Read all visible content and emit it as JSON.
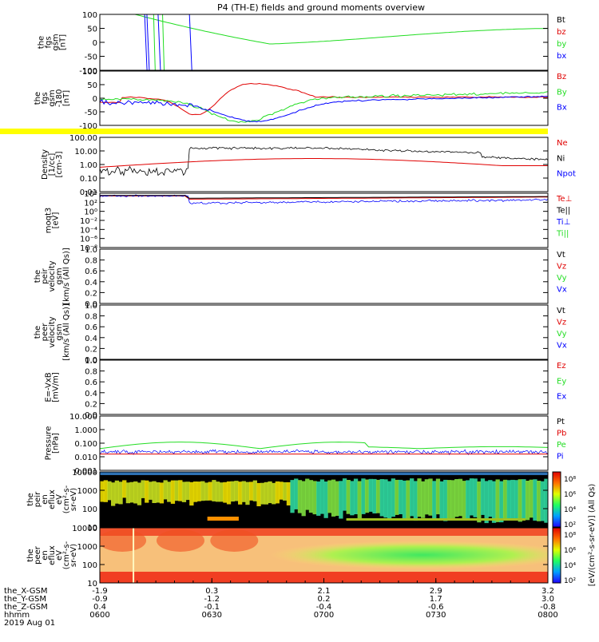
{
  "title": "P4 (TH-E) fields and ground moments overview",
  "colors": {
    "black": "#000000",
    "red": "#e00000",
    "green": "#22dd22",
    "blue": "#0000ff",
    "yellow": "#ffff00"
  },
  "chart_data": [
    {
      "id": "fgs",
      "type": "line",
      "ylabel": [
        "the",
        "fgs",
        "gsm",
        "[nT]"
      ],
      "ylim": [
        -100,
        100
      ],
      "yticks": [
        "100",
        "50",
        "0",
        "-50",
        "-100"
      ],
      "legend": [
        {
          "label": "Bt",
          "color": "#000000"
        },
        {
          "label": "bz",
          "color": "#e00000"
        },
        {
          "label": "by",
          "color": "#22dd22"
        },
        {
          "label": "bx",
          "color": "#0000ff"
        }
      ]
    },
    {
      "id": "fgs-smooth",
      "type": "line",
      "ylabel": [
        "the",
        "fgs",
        "gsm",
        "-180",
        "[nT]"
      ],
      "ylim": [
        -120,
        100
      ],
      "yticks": [
        "100",
        "50",
        "0",
        "-50",
        "-100"
      ],
      "legend": [
        {
          "label": "Bz",
          "color": "#e00000"
        },
        {
          "label": "By",
          "color": "#22dd22"
        },
        {
          "label": "Bx",
          "color": "#0000ff"
        }
      ]
    },
    {
      "id": "density",
      "type": "line",
      "ylabel": [
        "Density",
        "[1/cc]",
        "[cm-3]"
      ],
      "yscale": "log",
      "yticks": [
        "100.00",
        "10.00",
        "1.00",
        "0.10",
        "0.01"
      ],
      "legend": [
        {
          "label": "Ne",
          "color": "#e00000"
        },
        {
          "label": "Ni",
          "color": "#000000"
        },
        {
          "label": "Npot",
          "color": "#0000ff"
        }
      ]
    },
    {
      "id": "temperature",
      "type": "line",
      "ylabel": [
        "moqt3",
        "[eV]"
      ],
      "yscale": "log",
      "yticks": [
        "10⁴",
        "10²",
        "10⁰",
        "10⁻²",
        "10⁻⁴",
        "10⁻⁶",
        "10⁻⁸"
      ],
      "legend": [
        {
          "label": "Te⊥",
          "color": "#e00000"
        },
        {
          "label": "Te||",
          "color": "#000000"
        },
        {
          "label": "Ti⊥",
          "color": "#0000ff"
        },
        {
          "label": "Ti||",
          "color": "#22dd22"
        }
      ]
    },
    {
      "id": "peir-velocity",
      "type": "line",
      "ylabel": [
        "the",
        "peir",
        "velocity",
        "gsm",
        "[km/s (All Qs)]"
      ],
      "ylim": [
        0,
        1
      ],
      "yticks": [
        "1.0",
        "0.8",
        "0.6",
        "0.4",
        "0.2",
        "0.0"
      ],
      "legend": [
        {
          "label": "Vt",
          "color": "#000000"
        },
        {
          "label": "Vz",
          "color": "#e00000"
        },
        {
          "label": "Vy",
          "color": "#22dd22"
        },
        {
          "label": "Vx",
          "color": "#0000ff"
        }
      ]
    },
    {
      "id": "peer-velocity",
      "type": "line",
      "ylabel": [
        "the",
        "peer",
        "velocity",
        "gsm",
        "[km/s (All Qs)]"
      ],
      "ylim": [
        0,
        1
      ],
      "yticks": [
        "1.0",
        "0.8",
        "0.6",
        "0.4",
        "0.2",
        "0.0"
      ],
      "legend": [
        {
          "label": "Vt",
          "color": "#000000"
        },
        {
          "label": "Vz",
          "color": "#e00000"
        },
        {
          "label": "Vy",
          "color": "#22dd22"
        },
        {
          "label": "Vx",
          "color": "#0000ff"
        }
      ]
    },
    {
      "id": "efield",
      "type": "line",
      "ylabel": [
        "E=-VxB",
        "[mV/m]"
      ],
      "ylim": [
        0,
        1
      ],
      "yticks": [
        "1.0",
        "0.8",
        "0.6",
        "0.4",
        "0.2",
        "0.0"
      ],
      "legend": [
        {
          "label": "Ez",
          "color": "#e00000"
        },
        {
          "label": "Ey",
          "color": "#22dd22"
        },
        {
          "label": "Ex",
          "color": "#0000ff"
        }
      ]
    },
    {
      "id": "pressure",
      "type": "line",
      "ylabel": [
        "Pressure",
        "[nPa]"
      ],
      "yscale": "log",
      "yticks": [
        "10.000",
        "1.000",
        "0.100",
        "0.010",
        "0.001"
      ],
      "legend": [
        {
          "label": "Pt",
          "color": "#000000"
        },
        {
          "label": "Pb",
          "color": "#e00000"
        },
        {
          "label": "Pe",
          "color": "#22dd22"
        },
        {
          "label": "Pi",
          "color": "#0000ff"
        }
      ]
    },
    {
      "id": "peir-eflux",
      "type": "heatmap",
      "ylabel": [
        "the",
        "peir",
        "en",
        "eflux",
        "eV",
        "(cm²-s-",
        "sr-eV)"
      ],
      "yscale": "log",
      "yticks": [
        "10000",
        "1000",
        "100",
        "10"
      ],
      "colorbar_ticks": [
        "10⁸",
        "10⁶",
        "10⁴",
        "10²"
      ]
    },
    {
      "id": "peer-eflux",
      "type": "heatmap",
      "ylabel": [
        "the",
        "peer",
        "en",
        "eflux",
        "eV",
        "(cm²-s-",
        "sr-eV)"
      ],
      "yscale": "log",
      "yticks": [
        "10000",
        "1000",
        "100",
        "10"
      ],
      "colorbar_ticks": [
        "10⁸",
        "10⁶",
        "10⁴",
        "10²"
      ]
    }
  ],
  "colorbar_label": "[eV/(cm²-s-sr-eV)] (All Qs)",
  "x_axis": {
    "rows": [
      {
        "label": "the_X-GSM",
        "values": [
          "-1.9",
          "0.3",
          "2.1",
          "2.9",
          "3.2"
        ]
      },
      {
        "label": "the_Y-GSM",
        "values": [
          "-0.9",
          "-1.2",
          "0.2",
          "1.7",
          "3.0"
        ]
      },
      {
        "label": "the_Z-GSM",
        "values": [
          "0.4",
          "-0.1",
          "-0.4",
          "-0.6",
          "-0.8"
        ]
      },
      {
        "label": "hhmm",
        "values": [
          "0600",
          "0630",
          "0700",
          "0730",
          "0800"
        ]
      }
    ],
    "date": "2019 Aug 01"
  }
}
